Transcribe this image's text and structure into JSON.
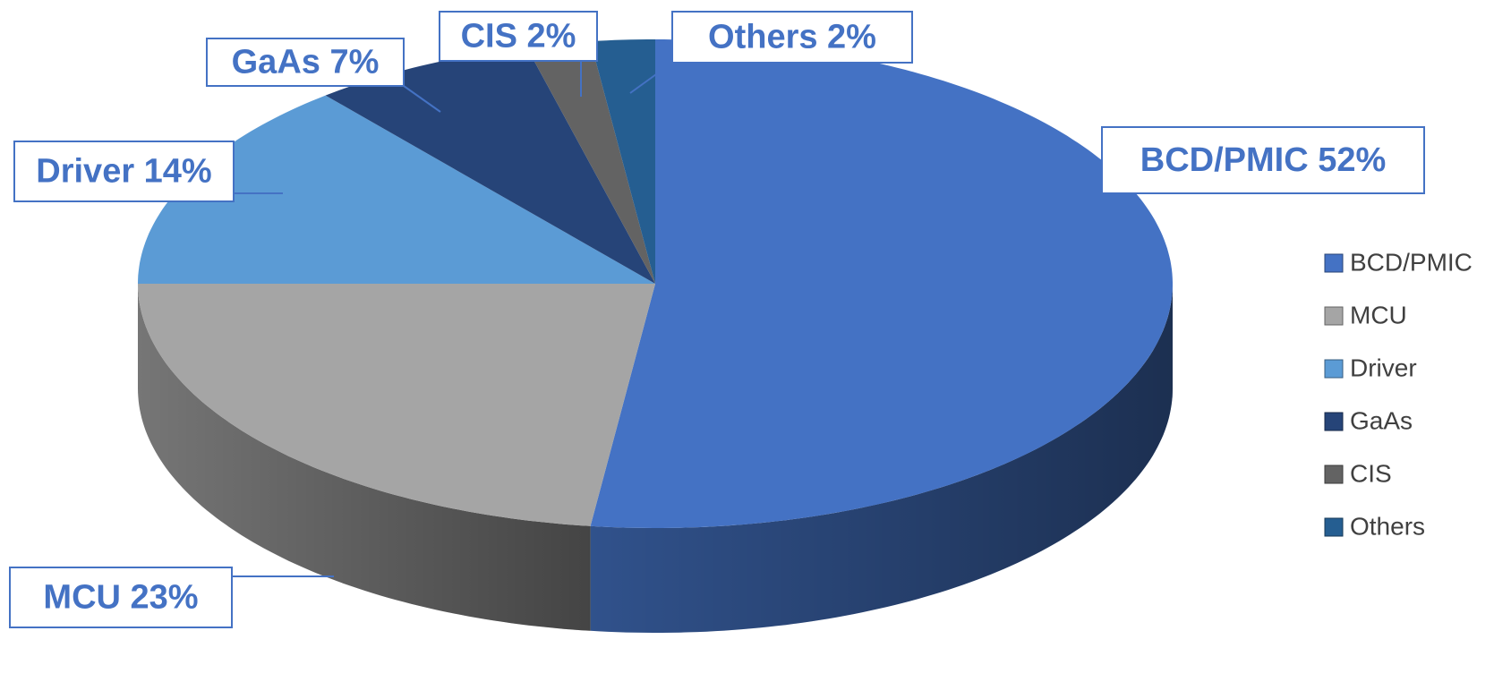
{
  "chart_data": {
    "type": "pie3d",
    "categories": [
      "BCD/PMIC",
      "MCU",
      "Driver",
      "GaAs",
      "CIS",
      "Others"
    ],
    "values": [
      52,
      23,
      14,
      7,
      2,
      2
    ],
    "value_labels": [
      "BCD/PMIC  52%",
      "MCU  23%",
      "Driver  14%",
      "GaAs  7%",
      "CIS  2%",
      "Others  2%"
    ],
    "colors": [
      "#4472c4",
      "#a5a5a5",
      "#5b9bd5",
      "#264478",
      "#636363",
      "#255e91"
    ],
    "legend": "right"
  }
}
